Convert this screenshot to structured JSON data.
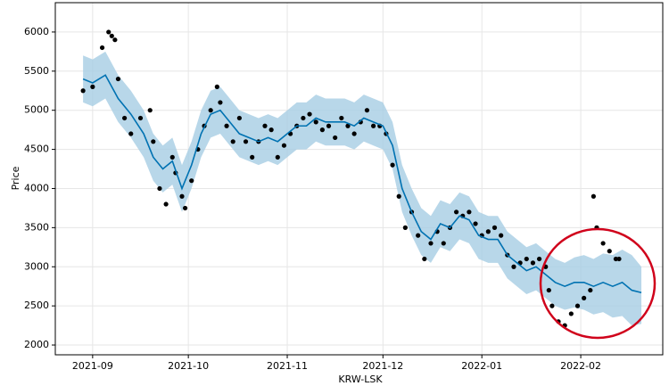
{
  "chart_data": {
    "type": "scatter",
    "x_label": "KRW-LSK",
    "y_label": "Price",
    "color": "#000000",
    "x": [
      -3,
      0,
      3,
      5,
      6,
      7,
      8,
      10,
      12,
      15,
      18,
      19,
      21,
      23,
      25,
      26,
      28,
      29,
      31,
      33,
      35,
      37,
      39,
      40,
      42,
      44,
      46,
      48,
      50,
      52,
      54,
      56,
      58,
      60,
      62,
      64,
      66,
      68,
      70,
      72,
      74,
      76,
      78,
      80,
      82,
      84,
      86,
      88,
      90,
      92,
      94,
      96,
      98,
      100,
      102,
      104,
      106,
      108,
      110,
      112,
      114,
      116,
      118,
      120,
      122,
      124,
      126,
      128,
      130,
      132,
      134,
      136,
      138,
      140,
      142,
      143,
      144,
      146,
      148,
      150,
      152,
      154,
      156,
      157,
      158,
      160,
      162,
      164,
      165
    ],
    "values": [
      5250,
      5300,
      5800,
      6000,
      5950,
      5900,
      5400,
      4900,
      4700,
      4900,
      5000,
      4600,
      4000,
      3800,
      4400,
      4200,
      3900,
      3750,
      4100,
      4500,
      4800,
      5000,
      5300,
      5100,
      4800,
      4600,
      4900,
      4600,
      4400,
      4600,
      4800,
      4750,
      4400,
      4550,
      4700,
      4800,
      4900,
      4950,
      4850,
      4750,
      4800,
      4650,
      4900,
      4800,
      4700,
      4850,
      5000,
      4800,
      4800,
      4700,
      4300,
      3900,
      3500,
      3700,
      3400,
      3100,
      3300,
      3450,
      3300,
      3500,
      3700,
      3650,
      3700,
      3550,
      3400,
      3450,
      3500,
      3400,
      3150,
      3000,
      3050,
      3100,
      3050,
      3100,
      3000,
      2700,
      2500,
      2300,
      2250,
      2400,
      2500,
      2600,
      2700,
      3900,
      3500,
      3300,
      3200,
      3100,
      3100
    ],
    "forecast": {
      "color": "#0072b2",
      "band_color": "#a6cde3",
      "x": [
        -3,
        0,
        4,
        8,
        12,
        16,
        19,
        22,
        25,
        28,
        31,
        34,
        37,
        40,
        43,
        46,
        49,
        52,
        55,
        58,
        61,
        64,
        67,
        70,
        73,
        76,
        79,
        82,
        85,
        88,
        91,
        94,
        97,
        100,
        103,
        106,
        109,
        112,
        115,
        118,
        121,
        124,
        127,
        130,
        133,
        136,
        139,
        142,
        145,
        148,
        151,
        154,
        157,
        160,
        163,
        166,
        169,
        172
      ],
      "values": [
        5400,
        5350,
        5450,
        5150,
        4950,
        4700,
        4400,
        4250,
        4350,
        4000,
        4300,
        4700,
        4950,
        5000,
        4850,
        4700,
        4650,
        4600,
        4650,
        4600,
        4700,
        4800,
        4800,
        4900,
        4850,
        4850,
        4850,
        4800,
        4900,
        4850,
        4800,
        4550,
        4000,
        3700,
        3450,
        3350,
        3550,
        3500,
        3650,
        3600,
        3400,
        3350,
        3350,
        3150,
        3050,
        2950,
        3000,
        2900,
        2800,
        2750,
        2800,
        2800,
        2750,
        2800,
        2750,
        2800,
        2700,
        2670
      ],
      "upper": [
        5700,
        5650,
        5750,
        5450,
        5250,
        5000,
        4700,
        4550,
        4650,
        4300,
        4600,
        5000,
        5250,
        5300,
        5150,
        5000,
        4950,
        4900,
        4950,
        4900,
        5000,
        5100,
        5100,
        5200,
        5150,
        5150,
        5150,
        5100,
        5200,
        5150,
        5100,
        4850,
        4300,
        4000,
        3750,
        3650,
        3850,
        3800,
        3950,
        3900,
        3700,
        3650,
        3650,
        3450,
        3350,
        3250,
        3300,
        3200,
        3100,
        3050,
        3120,
        3150,
        3100,
        3170,
        3150,
        3220,
        3150,
        3000
      ],
      "lower": [
        5100,
        5050,
        5150,
        4850,
        4650,
        4400,
        4100,
        3950,
        4050,
        3700,
        4000,
        4400,
        4650,
        4700,
        4550,
        4400,
        4350,
        4300,
        4350,
        4300,
        4400,
        4500,
        4500,
        4600,
        4550,
        4550,
        4550,
        4500,
        4600,
        4550,
        4500,
        4250,
        3700,
        3400,
        3150,
        3050,
        3250,
        3200,
        3350,
        3300,
        3100,
        3050,
        3050,
        2850,
        2750,
        2650,
        2700,
        2600,
        2500,
        2450,
        2480,
        2450,
        2390,
        2420,
        2350,
        2370,
        2250,
        2270
      ]
    },
    "xlim": [
      -11.7,
      178.7
    ],
    "ylim": [
      1875,
      6375
    ],
    "xticks": [
      {
        "value": 0,
        "label": "2021-09"
      },
      {
        "value": 30,
        "label": "2021-10"
      },
      {
        "value": 61,
        "label": "2021-11"
      },
      {
        "value": 91,
        "label": "2021-12"
      },
      {
        "value": 122,
        "label": "2022-01"
      },
      {
        "value": 153,
        "label": "2022-02"
      }
    ],
    "yticks": [
      2000,
      2500,
      3000,
      3500,
      4000,
      4500,
      5000,
      5500,
      6000
    ],
    "grid": true
  }
}
